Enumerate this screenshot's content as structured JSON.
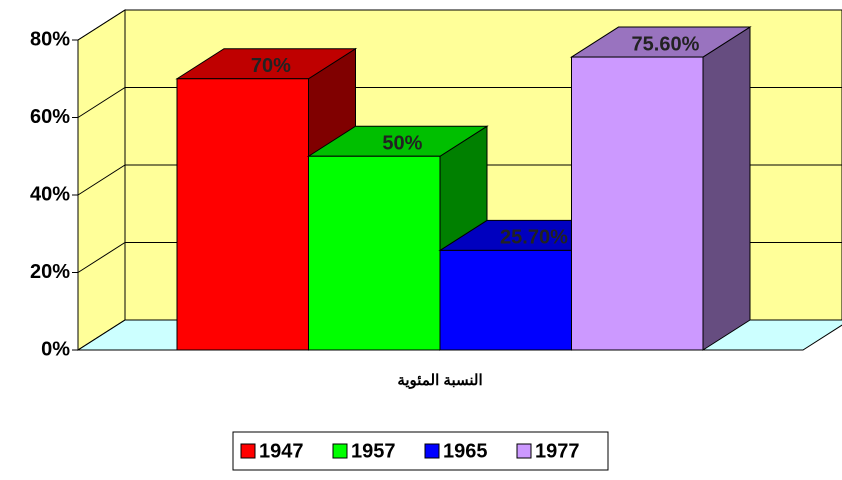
{
  "chart_data": {
    "type": "bar3d",
    "categories": [
      "النسبة المئوية"
    ],
    "series": [
      {
        "name": "1947",
        "color": "#ff0000",
        "values": [
          70
        ],
        "value_labels": [
          "70%"
        ]
      },
      {
        "name": "1957",
        "color": "#00ff00",
        "values": [
          50
        ],
        "value_labels": [
          "50%"
        ]
      },
      {
        "name": "1965",
        "color": "#0000ff",
        "values": [
          25.7
        ],
        "value_labels": [
          "25.70%"
        ]
      },
      {
        "name": "1977",
        "color": "#cc99ff",
        "values": [
          75.6
        ],
        "value_labels": [
          "75.60%"
        ]
      }
    ],
    "ylim": [
      0,
      80
    ],
    "yticks": [
      {
        "value": 0,
        "label": "0%"
      },
      {
        "value": 20,
        "label": "20%"
      },
      {
        "value": 40,
        "label": "40%"
      },
      {
        "value": 60,
        "label": "60%"
      },
      {
        "value": 80,
        "label": "80%"
      }
    ],
    "grid": true,
    "legend": "bottom"
  }
}
